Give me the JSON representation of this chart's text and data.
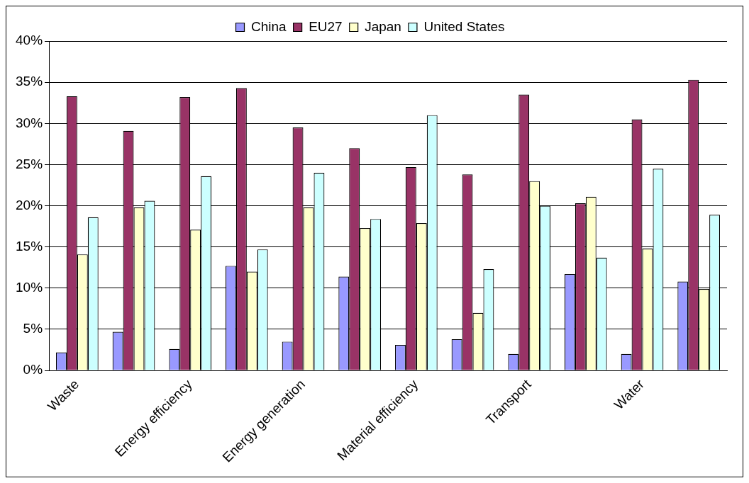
{
  "chart_data": {
    "type": "bar",
    "categories": [
      "Waste",
      null,
      "Energy efficiency",
      null,
      "Energy generation",
      null,
      "Material efficiency",
      null,
      "Transport",
      null,
      "Water",
      null
    ],
    "series": [
      {
        "name": "China",
        "color": "#9999ff",
        "values": [
          2.2,
          4.7,
          2.6,
          12.7,
          3.5,
          11.4,
          3.1,
          3.8,
          2.0,
          11.7,
          2.0,
          10.8
        ]
      },
      {
        "name": "EU27",
        "color": "#993366",
        "values": [
          33.3,
          29.1,
          33.2,
          34.3,
          29.5,
          27.0,
          24.7,
          23.8,
          33.5,
          20.3,
          30.5,
          35.3
        ]
      },
      {
        "name": "Japan",
        "color": "#ffffcc",
        "values": [
          14.1,
          19.8,
          17.1,
          12.0,
          19.8,
          17.3,
          17.9,
          7.0,
          23.0,
          21.1,
          14.8,
          9.9
        ]
      },
      {
        "name": "United States",
        "color": "#ccffff",
        "values": [
          18.6,
          20.6,
          23.6,
          14.7,
          24.0,
          18.4,
          31.0,
          12.3,
          20.0,
          13.7,
          24.5,
          18.9
        ]
      }
    ],
    "ylim": [
      0,
      40
    ],
    "yticks": [
      {
        "value": 0,
        "label": "0%"
      },
      {
        "value": 5,
        "label": "5%"
      },
      {
        "value": 10,
        "label": "10%"
      },
      {
        "value": 15,
        "label": "15%"
      },
      {
        "value": 20,
        "label": "20%"
      },
      {
        "value": 25,
        "label": "25%"
      },
      {
        "value": 30,
        "label": "30%"
      },
      {
        "value": 35,
        "label": "35%"
      },
      {
        "value": 40,
        "label": "40%"
      }
    ],
    "grid": "y",
    "legend": "top"
  }
}
